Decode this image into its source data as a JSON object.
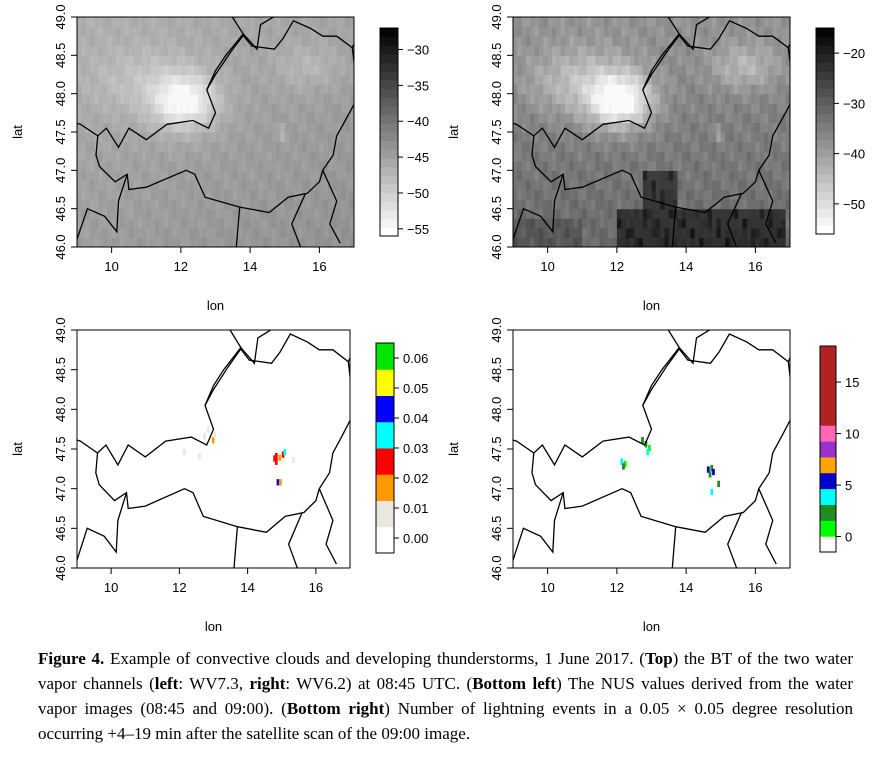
{
  "colors": {
    "nus_scale": [
      "#ffffff",
      "#e8e8e0",
      "#ff9900",
      "#ff0000",
      "#00ffff",
      "#0000ff",
      "#ffff00",
      "#00e600"
    ],
    "lightning_scale": [
      "#ffffff",
      "#00ff00",
      "#228b22",
      "#00ffff",
      "#0000cd",
      "#ffa500",
      "#9932cc",
      "#ff69b4",
      "#b22222",
      "#b22222",
      "#b22222",
      "#b22222",
      "#b22222"
    ],
    "border": "#000000",
    "text": "#000000"
  },
  "chart_data": [
    {
      "id": "wv73",
      "type": "heatmap",
      "xlabel": "lon",
      "ylabel": "lat",
      "xlim": [
        9,
        17
      ],
      "ylim": [
        46,
        49
      ],
      "xticks": [
        "10",
        "12",
        "14",
        "16"
      ],
      "yticks": [
        "46.0",
        "46.5",
        "47.0",
        "47.5",
        "48.0",
        "48.5",
        "49.0"
      ],
      "colorbar": {
        "min": -56,
        "max": -27,
        "ticks": [
          "-30",
          "-35",
          "-40",
          "-45",
          "-50",
          "-55"
        ]
      },
      "grayscale": true
    },
    {
      "id": "wv62",
      "type": "heatmap",
      "xlabel": "lon",
      "ylabel": "lat",
      "xlim": [
        9,
        17
      ],
      "ylim": [
        46,
        49
      ],
      "xticks": [
        "10",
        "12",
        "14",
        "16"
      ],
      "yticks": [
        "46.0",
        "46.5",
        "47.0",
        "47.5",
        "48.0",
        "48.5",
        "49.0"
      ],
      "colorbar": {
        "min": -56,
        "max": -15,
        "ticks": [
          "-20",
          "-30",
          "-40",
          "-50"
        ]
      },
      "grayscale": true
    },
    {
      "id": "nus",
      "type": "heatmap",
      "xlabel": "lon",
      "ylabel": "lat",
      "xlim": [
        9,
        17
      ],
      "ylim": [
        46,
        49
      ],
      "xticks": [
        "10",
        "12",
        "14",
        "16"
      ],
      "yticks": [
        "46.0",
        "46.5",
        "47.0",
        "47.5",
        "48.0",
        "48.5",
        "49.0"
      ],
      "colorbar": {
        "min": -0.005,
        "max": 0.065,
        "ticks": [
          "0.06",
          "0.05",
          "0.04",
          "0.03",
          "0.02",
          "0.01",
          "0.00"
        ]
      },
      "cells": [
        {
          "lon": 12.95,
          "lat": 47.65,
          "v": 0.02
        },
        {
          "lon": 13.0,
          "lat": 47.72,
          "v": 0.01
        },
        {
          "lon": 12.8,
          "lat": 47.78,
          "v": 0.005
        },
        {
          "lon": 12.7,
          "lat": 47.7,
          "v": 0.005
        },
        {
          "lon": 12.1,
          "lat": 47.5,
          "v": 0.005
        },
        {
          "lon": 12.55,
          "lat": 47.45,
          "v": 0.005
        },
        {
          "lon": 14.8,
          "lat": 47.45,
          "v": 0.03
        },
        {
          "lon": 14.8,
          "lat": 47.38,
          "v": 0.03
        },
        {
          "lon": 14.75,
          "lat": 47.42,
          "v": 0.025
        },
        {
          "lon": 15.0,
          "lat": 47.47,
          "v": 0.03
        },
        {
          "lon": 15.05,
          "lat": 47.5,
          "v": 0.035
        },
        {
          "lon": 14.9,
          "lat": 47.43,
          "v": 0.02
        },
        {
          "lon": 14.85,
          "lat": 47.12,
          "v": 0.04
        },
        {
          "lon": 14.92,
          "lat": 47.12,
          "v": 0.02
        },
        {
          "lon": 15.3,
          "lat": 47.4,
          "v": 0.005
        }
      ]
    },
    {
      "id": "lightning",
      "type": "heatmap",
      "xlabel": "lon",
      "ylabel": "lat",
      "xlim": [
        9,
        17
      ],
      "ylim": [
        46,
        49
      ],
      "xticks": [
        "10",
        "12",
        "14",
        "16"
      ],
      "yticks": [
        "46.0",
        "46.5",
        "47.0",
        "47.5",
        "48.0",
        "48.5",
        "49.0"
      ],
      "colorbar": {
        "min": -1.5,
        "max": 18.5,
        "ticks": [
          "15",
          "10",
          "5",
          "0"
        ]
      },
      "cells": [
        {
          "lon": 12.1,
          "lat": 47.38,
          "v": 4
        },
        {
          "lon": 12.2,
          "lat": 47.35,
          "v": 1
        },
        {
          "lon": 12.15,
          "lat": 47.32,
          "v": 2
        },
        {
          "lon": 12.7,
          "lat": 47.65,
          "v": 2
        },
        {
          "lon": 12.8,
          "lat": 47.6,
          "v": 3
        },
        {
          "lon": 12.9,
          "lat": 47.55,
          "v": 1
        },
        {
          "lon": 12.85,
          "lat": 47.5,
          "v": 4
        },
        {
          "lon": 14.6,
          "lat": 47.28,
          "v": 5
        },
        {
          "lon": 14.7,
          "lat": 47.3,
          "v": 2
        },
        {
          "lon": 14.65,
          "lat": 47.22,
          "v": 3
        },
        {
          "lon": 14.75,
          "lat": 47.25,
          "v": 6
        },
        {
          "lon": 14.9,
          "lat": 47.1,
          "v": 2
        },
        {
          "lon": 14.7,
          "lat": 47.0,
          "v": 4
        }
      ]
    }
  ],
  "caption": {
    "label": "Figure 4.",
    "text1": " Example of convective clouds and developing thunderstorms, 1 June 2017. (",
    "top": "Top",
    "text2": ") the BT of the two water vapor channels (",
    "left": "left",
    "text3": ": WV7.3, ",
    "right": "right",
    "text4": ": WV6.2) at 08:45 UTC. (",
    "bottom_left": "Bottom left",
    "text5": ") The NUS values derived from the water vapor images (08:45 and 09:00). (",
    "bottom_right": "Bottom right",
    "text6": ") Number of lightning events in a 0.05 × 0.05 degree resolution occurring +4–19 min after the satellite scan of the 09:00 image."
  }
}
